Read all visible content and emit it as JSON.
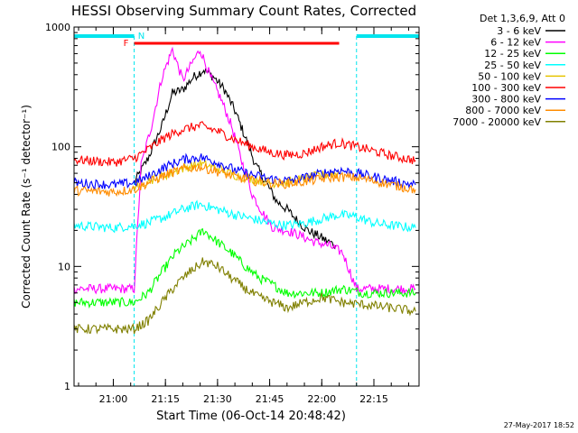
{
  "chart_data": {
    "type": "line",
    "title": "HESSI Observing Summary Count Rates, Corrected",
    "xlabel": "Start Time (06-Oct-14 20:48:42)",
    "ylabel": "Corrected Count Rate (s⁻¹ detector⁻¹)",
    "yscale": "log",
    "ylim": [
      1,
      1000
    ],
    "xlim": [
      "20:48:42",
      "22:28:00"
    ],
    "xticks": [
      "21:00",
      "21:15",
      "21:30",
      "21:45",
      "22:00",
      "22:15"
    ],
    "yticks": [
      "1",
      "10",
      "100",
      "1000"
    ],
    "legend_title": "Det 1,3,6,9, Att 0",
    "legend_position": "right",
    "timestamp": "27-May-2017 18:52",
    "annotations": {
      "flag_F": "F",
      "flag_N": "N"
    },
    "night_intervals": [
      [
        "20:48:42",
        "21:06:00"
      ],
      [
        "22:10:00",
        "22:28:00"
      ]
    ],
    "flare_interval": [
      "21:06:00",
      "22:05:00"
    ],
    "series": [
      {
        "name": "3 - 6 keV",
        "color": "#000000",
        "x": [
          "21:06",
          "21:10",
          "21:14",
          "21:17",
          "21:20",
          "21:23",
          "21:26",
          "21:29",
          "21:32",
          "21:35",
          "21:38",
          "21:41",
          "21:44",
          "21:47",
          "21:50",
          "21:53",
          "21:56",
          "21:59",
          "22:02",
          "22:04"
        ],
        "y": [
          50,
          80,
          150,
          280,
          300,
          380,
          440,
          380,
          300,
          200,
          120,
          70,
          50,
          35,
          30,
          24,
          20,
          18,
          16,
          15
        ]
      },
      {
        "name": "6 - 12 keV",
        "color": "#ff00ff",
        "x": [
          "20:48:42",
          "21:06",
          "21:08",
          "21:11",
          "21:14",
          "21:17",
          "21:20",
          "21:23",
          "21:25",
          "21:28",
          "21:31",
          "21:34",
          "21:37",
          "21:40",
          "21:43",
          "21:46",
          "21:50",
          "21:54",
          "21:58",
          "22:02",
          "22:06",
          "22:10",
          "22:20",
          "22:27"
        ],
        "y": [
          6.5,
          6.5,
          70,
          150,
          380,
          650,
          360,
          520,
          650,
          380,
          250,
          150,
          75,
          40,
          28,
          21,
          20,
          18,
          16,
          15,
          13,
          6.5,
          6.5,
          6.5
        ]
      },
      {
        "name": "12 - 25 keV",
        "color": "#00ff00",
        "x": [
          "20:48:42",
          "21:06",
          "21:10",
          "21:14",
          "21:18",
          "21:22",
          "21:26",
          "21:30",
          "21:34",
          "21:38",
          "21:42",
          "21:46",
          "21:50",
          "21:55",
          "22:00",
          "22:06",
          "22:12",
          "22:20",
          "22:27"
        ],
        "y": [
          5,
          5,
          6,
          9,
          13,
          16,
          20,
          16,
          13,
          10,
          8,
          7,
          6,
          6,
          6,
          6.5,
          6,
          6,
          6
        ]
      },
      {
        "name": "25 - 50 keV",
        "color": "#00ffff",
        "x": [
          "20:48:42",
          "21:00",
          "21:06",
          "21:10",
          "21:15",
          "21:20",
          "21:25",
          "21:30",
          "21:35",
          "21:40",
          "21:45",
          "21:50",
          "21:55",
          "22:00",
          "22:05",
          "22:10",
          "22:15",
          "22:20",
          "22:27"
        ],
        "y": [
          22,
          21,
          22,
          23,
          26,
          30,
          33,
          30,
          27,
          25,
          23,
          22,
          23,
          25,
          27,
          26,
          23,
          22,
          21
        ]
      },
      {
        "name": "50 - 100 keV",
        "color": "#e6c400",
        "x": [
          "21:06",
          "21:10",
          "21:15",
          "21:20",
          "21:25",
          "21:30",
          "21:35",
          "21:40",
          "21:45",
          "21:50",
          "21:55",
          "22:00",
          "22:05"
        ],
        "y": [
          48,
          52,
          58,
          66,
          72,
          66,
          58,
          54,
          50,
          50,
          54,
          58,
          60
        ]
      },
      {
        "name": "100 - 300 keV",
        "color": "#ff0000",
        "x": [
          "20:48:42",
          "21:00",
          "21:06",
          "21:10",
          "21:15",
          "21:20",
          "21:25",
          "21:30",
          "21:35",
          "21:40",
          "21:45",
          "21:50",
          "21:55",
          "22:00",
          "22:05",
          "22:10",
          "22:15",
          "22:20",
          "22:27"
        ],
        "y": [
          78,
          74,
          80,
          95,
          120,
          140,
          150,
          135,
          115,
          100,
          90,
          85,
          88,
          100,
          108,
          100,
          92,
          84,
          77
        ]
      },
      {
        "name": "300 - 800 keV",
        "color": "#0000ff",
        "x": [
          "20:48:42",
          "21:00",
          "21:06",
          "21:10",
          "21:15",
          "21:20",
          "21:25",
          "21:30",
          "21:35",
          "21:40",
          "21:45",
          "21:50",
          "21:55",
          "22:00",
          "22:05",
          "22:10",
          "22:15",
          "22:20",
          "22:27"
        ],
        "y": [
          50,
          48,
          50,
          56,
          68,
          78,
          82,
          74,
          64,
          58,
          54,
          52,
          55,
          60,
          64,
          60,
          56,
          52,
          48
        ]
      },
      {
        "name": "800 - 7000 keV",
        "color": "#ff8c00",
        "x": [
          "20:48:42",
          "21:00",
          "21:06",
          "21:10",
          "21:15",
          "21:20",
          "21:25",
          "21:30",
          "21:35",
          "21:40",
          "21:45",
          "21:50",
          "21:55",
          "22:00",
          "22:05",
          "22:10",
          "22:15",
          "22:20",
          "22:27"
        ],
        "y": [
          43,
          42,
          44,
          50,
          58,
          65,
          68,
          62,
          56,
          52,
          50,
          49,
          51,
          54,
          56,
          55,
          52,
          48,
          44
        ]
      },
      {
        "name": "7000 - 20000 keV",
        "color": "#808000",
        "x": [
          "20:48:42",
          "21:06",
          "21:10",
          "21:14",
          "21:18",
          "21:22",
          "21:26",
          "21:30",
          "21:34",
          "21:38",
          "21:42",
          "21:46",
          "21:50",
          "21:55",
          "22:00",
          "22:06",
          "22:12",
          "22:20",
          "22:27"
        ],
        "y": [
          3,
          3,
          3.5,
          5,
          7,
          9,
          11,
          10,
          8,
          6.5,
          5.5,
          5,
          4.5,
          5,
          5.5,
          5,
          4.8,
          4.5,
          4.2
        ]
      }
    ]
  }
}
